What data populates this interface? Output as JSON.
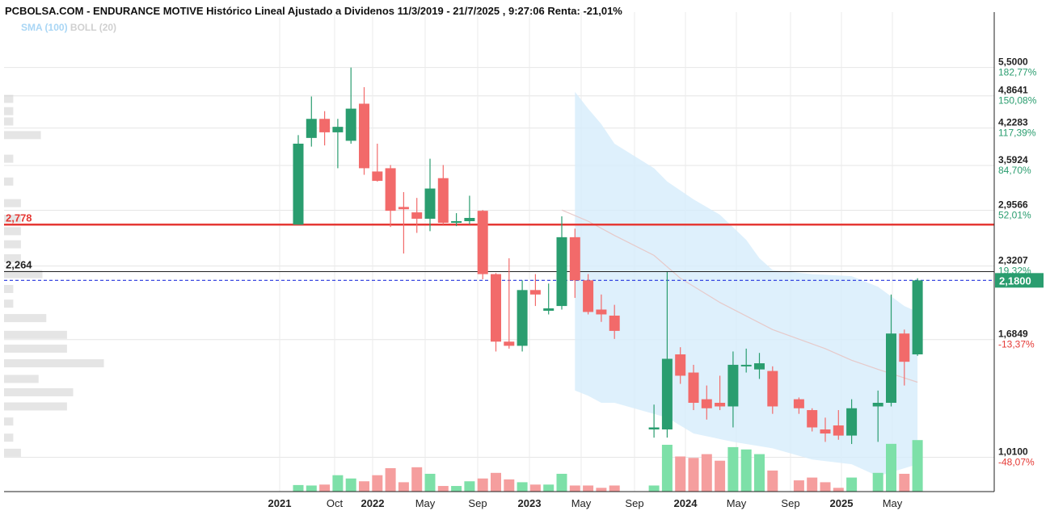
{
  "header": {
    "title": "PCBOLSA.COM - ENDURANCE MOTIVE Histórico Lineal Ajustado a Dividenos 11/3/2019 - 21/7/2025 , 9:27:06 Renta: -21,01%",
    "sma_label": "SMA (100)",
    "boll_label": "BOLL (20)"
  },
  "colors": {
    "up": "#2a9d6f",
    "down": "#f26a6a",
    "volume_up": "#7de0a8",
    "volume_down": "#f59e9e",
    "band_fill": "#d6ecfb",
    "support_line": "#e53935",
    "price_line": "#2233dd",
    "price_tag": "#2a9d6f",
    "pct_positive": "#2a9d6f",
    "pct_negative": "#e53935"
  },
  "chart_data": {
    "type": "candlestick",
    "scale": "log",
    "ylim": [
      0.87,
      6.3
    ],
    "grid": true,
    "x_tick_labels": [
      "2021",
      "Oct",
      "2022",
      "May",
      "Sep",
      "2023",
      "May",
      "Sep",
      "2024",
      "May",
      "Sep",
      "2025",
      "May"
    ],
    "y_ticks": [
      {
        "value": "5,5000",
        "pct": "182,77%"
      },
      {
        "value": "4,8641",
        "pct": "150,08%"
      },
      {
        "value": "4,2283",
        "pct": "117,39%"
      },
      {
        "value": "3,5924",
        "pct": "84,70%"
      },
      {
        "value": "2,9566",
        "pct": "52,01%"
      },
      {
        "value": "2,3207",
        "pct": "19,32%"
      },
      {
        "value": "1,6849",
        "pct": "-13,37%"
      },
      {
        "value": "1,0100",
        "pct": "-48,07%"
      }
    ],
    "last_price": "2,1800",
    "last_price_value": 2.18,
    "horizontal_lines": [
      {
        "label": "2,778",
        "value": 2.778
      },
      {
        "label": "2,264",
        "value": 2.264
      }
    ],
    "candles": [
      {
        "date": "2021-08",
        "open": 2.778,
        "high": 4.1,
        "low": 2.778,
        "close": 3.95
      },
      {
        "date": "2021-09",
        "open": 4.05,
        "high": 4.85,
        "low": 3.9,
        "close": 4.4
      },
      {
        "date": "2021-10",
        "open": 4.4,
        "high": 4.55,
        "low": 3.92,
        "close": 4.15
      },
      {
        "date": "2021-11",
        "open": 4.15,
        "high": 4.4,
        "low": 3.55,
        "close": 4.25
      },
      {
        "date": "2021-12",
        "open": 4.0,
        "high": 5.5,
        "low": 3.95,
        "close": 4.6
      },
      {
        "date": "2022-01",
        "open": 4.7,
        "high": 5.05,
        "low": 3.45,
        "close": 3.55
      },
      {
        "date": "2022-02",
        "open": 3.5,
        "high": 3.95,
        "low": 3.35,
        "close": 3.36
      },
      {
        "date": "2022-03",
        "open": 3.55,
        "high": 3.6,
        "low": 2.75,
        "close": 2.95
      },
      {
        "date": "2022-04",
        "open": 3.0,
        "high": 3.2,
        "low": 2.45,
        "close": 2.97
      },
      {
        "date": "2022-05",
        "open": 2.93,
        "high": 3.12,
        "low": 2.68,
        "close": 2.85
      },
      {
        "date": "2022-06",
        "open": 2.85,
        "high": 3.7,
        "low": 2.7,
        "close": 3.25
      },
      {
        "date": "2022-07",
        "open": 3.4,
        "high": 3.6,
        "low": 2.78,
        "close": 2.8
      },
      {
        "date": "2022-08",
        "open": 2.8,
        "high": 2.92,
        "low": 2.76,
        "close": 2.82
      },
      {
        "date": "2022-09",
        "open": 2.82,
        "high": 3.15,
        "low": 2.78,
        "close": 2.86
      },
      {
        "date": "2022-10",
        "open": 2.95,
        "high": 2.96,
        "low": 2.19,
        "close": 2.24
      },
      {
        "date": "2022-11",
        "open": 2.24,
        "high": 2.25,
        "low": 1.6,
        "close": 1.67
      },
      {
        "date": "2022-12",
        "open": 1.67,
        "high": 2.4,
        "low": 1.62,
        "close": 1.64
      },
      {
        "date": "2023-01",
        "open": 1.64,
        "high": 2.18,
        "low": 1.6,
        "close": 2.09
      },
      {
        "date": "2023-02",
        "open": 2.09,
        "high": 2.24,
        "low": 1.95,
        "close": 2.05
      },
      {
        "date": "2023-03",
        "open": 1.91,
        "high": 2.15,
        "low": 1.88,
        "close": 1.93
      },
      {
        "date": "2023-04",
        "open": 1.95,
        "high": 2.88,
        "low": 1.92,
        "close": 2.63
      },
      {
        "date": "2023-05",
        "open": 2.63,
        "high": 2.73,
        "low": 2.02,
        "close": 2.18
      },
      {
        "date": "2023-06",
        "open": 2.18,
        "high": 2.24,
        "low": 1.88,
        "close": 1.9
      },
      {
        "date": "2023-07",
        "open": 1.92,
        "high": 2.05,
        "low": 1.82,
        "close": 1.88
      },
      {
        "date": "2023-08",
        "open": 1.87,
        "high": 1.96,
        "low": 1.69,
        "close": 1.75
      },
      {
        "date": "2023-11",
        "open": 1.14,
        "high": 1.27,
        "low": 1.1,
        "close": 1.15
      },
      {
        "date": "2023-12",
        "open": 1.14,
        "high": 2.26,
        "low": 1.1,
        "close": 1.55
      },
      {
        "date": "2024-01",
        "open": 1.58,
        "high": 1.63,
        "low": 1.39,
        "close": 1.44
      },
      {
        "date": "2024-02",
        "open": 1.46,
        "high": 1.51,
        "low": 1.24,
        "close": 1.28
      },
      {
        "date": "2024-03",
        "open": 1.3,
        "high": 1.38,
        "low": 1.19,
        "close": 1.25
      },
      {
        "date": "2024-04",
        "open": 1.28,
        "high": 1.44,
        "low": 1.24,
        "close": 1.26
      },
      {
        "date": "2024-05",
        "open": 1.26,
        "high": 1.6,
        "low": 1.15,
        "close": 1.51
      },
      {
        "date": "2024-06",
        "open": 1.51,
        "high": 1.62,
        "low": 1.46,
        "close": 1.51
      },
      {
        "date": "2024-07",
        "open": 1.48,
        "high": 1.59,
        "low": 1.42,
        "close": 1.52
      },
      {
        "date": "2024-08",
        "open": 1.47,
        "high": 1.5,
        "low": 1.22,
        "close": 1.26
      },
      {
        "date": "2024-10",
        "open": 1.3,
        "high": 1.31,
        "low": 1.22,
        "close": 1.25
      },
      {
        "date": "2024-11",
        "open": 1.24,
        "high": 1.25,
        "low": 1.13,
        "close": 1.15
      },
      {
        "date": "2024-12",
        "open": 1.14,
        "high": 1.2,
        "low": 1.08,
        "close": 1.12
      },
      {
        "date": "2025-01",
        "open": 1.16,
        "high": 1.24,
        "low": 1.09,
        "close": 1.11
      },
      {
        "date": "2025-02",
        "open": 1.11,
        "high": 1.3,
        "low": 1.07,
        "close": 1.25
      },
      {
        "date": "2025-04",
        "open": 1.26,
        "high": 1.35,
        "low": 1.08,
        "close": 1.28
      },
      {
        "date": "2025-05",
        "open": 1.28,
        "high": 2.05,
        "low": 1.26,
        "close": 1.73
      },
      {
        "date": "2025-06",
        "open": 1.73,
        "high": 1.76,
        "low": 1.38,
        "close": 1.53
      },
      {
        "date": "2025-07",
        "open": 1.58,
        "high": 2.2,
        "low": 1.57,
        "close": 2.18
      }
    ],
    "volume_relative": [
      0.14,
      0.13,
      0.15,
      0.35,
      0.28,
      0.22,
      0.35,
      0.5,
      0.2,
      0.52,
      0.38,
      0.12,
      0.12,
      0.22,
      0.28,
      0.4,
      0.26,
      0.2,
      0.15,
      0.15,
      0.38,
      0.13,
      0.13,
      0.08,
      0.13,
      0.13,
      1.0,
      0.75,
      0.72,
      0.8,
      0.66,
      0.95,
      0.9,
      0.8,
      0.45,
      0.24,
      0.3,
      0.2,
      0.08,
      0.3,
      0.4,
      1.02,
      0.38,
      1.1
    ],
    "bollinger_band": {
      "upper": [
        [
          "2023-05",
          4.95
        ],
        [
          "2023-06",
          4.6
        ],
        [
          "2023-07",
          4.3
        ],
        [
          "2023-08",
          3.95
        ],
        [
          "2023-11",
          3.55
        ],
        [
          "2023-12",
          3.35
        ],
        [
          "2024-02",
          3.1
        ],
        [
          "2024-04",
          2.9
        ],
        [
          "2024-06",
          2.6
        ],
        [
          "2024-07",
          2.4
        ],
        [
          "2024-08",
          2.28
        ],
        [
          "2024-11",
          2.24
        ],
        [
          "2025-02",
          2.22
        ],
        [
          "2025-04",
          2.12
        ],
        [
          "2025-06",
          1.95
        ],
        [
          "2025-07",
          1.9
        ]
      ],
      "lower": [
        [
          "2025-07",
          0.98
        ],
        [
          "2025-04",
          0.93
        ],
        [
          "2025-02",
          0.98
        ],
        [
          "2024-11",
          1.0
        ],
        [
          "2024-08",
          1.05
        ],
        [
          "2024-05",
          1.08
        ],
        [
          "2024-02",
          1.12
        ],
        [
          "2023-12",
          1.2
        ],
        [
          "2023-08",
          1.28
        ],
        [
          "2023-07",
          1.28
        ],
        [
          "2023-06",
          1.32
        ],
        [
          "2023-05",
          1.35
        ]
      ]
    },
    "sma": [
      [
        "2023-04",
        2.96
      ],
      [
        "2023-06",
        2.82
      ],
      [
        "2023-08",
        2.65
      ],
      [
        "2023-11",
        2.43
      ],
      [
        "2024-01",
        2.2
      ],
      [
        "2024-04",
        1.98
      ],
      [
        "2024-08",
        1.76
      ],
      [
        "2024-12",
        1.62
      ],
      [
        "2025-02",
        1.54
      ],
      [
        "2025-04",
        1.48
      ],
      [
        "2025-07",
        1.4
      ]
    ],
    "volume_profile": [
      {
        "value": 4.8,
        "width": 0.12
      },
      {
        "value": 4.55,
        "width": 0.12
      },
      {
        "value": 4.35,
        "width": 0.12
      },
      {
        "value": 4.1,
        "width": 0.48
      },
      {
        "value": 3.7,
        "width": 0.12
      },
      {
        "value": 3.35,
        "width": 0.12
      },
      {
        "value": 3.05,
        "width": 0.22
      },
      {
        "value": 2.85,
        "width": 0.22
      },
      {
        "value": 2.7,
        "width": 0.22
      },
      {
        "value": 2.55,
        "width": 0.22
      },
      {
        "value": 2.4,
        "width": 0.22
      },
      {
        "value": 2.24,
        "width": 0.5
      },
      {
        "value": 2.1,
        "width": 0.12
      },
      {
        "value": 1.97,
        "width": 0.12
      },
      {
        "value": 1.85,
        "width": 0.55
      },
      {
        "value": 1.72,
        "width": 0.82
      },
      {
        "value": 1.62,
        "width": 0.82
      },
      {
        "value": 1.52,
        "width": 1.3
      },
      {
        "value": 1.42,
        "width": 0.45
      },
      {
        "value": 1.34,
        "width": 0.9
      },
      {
        "value": 1.26,
        "width": 0.82
      },
      {
        "value": 1.18,
        "width": 0.12
      },
      {
        "value": 1.1,
        "width": 0.12
      },
      {
        "value": 1.03,
        "width": 0.22
      }
    ]
  }
}
